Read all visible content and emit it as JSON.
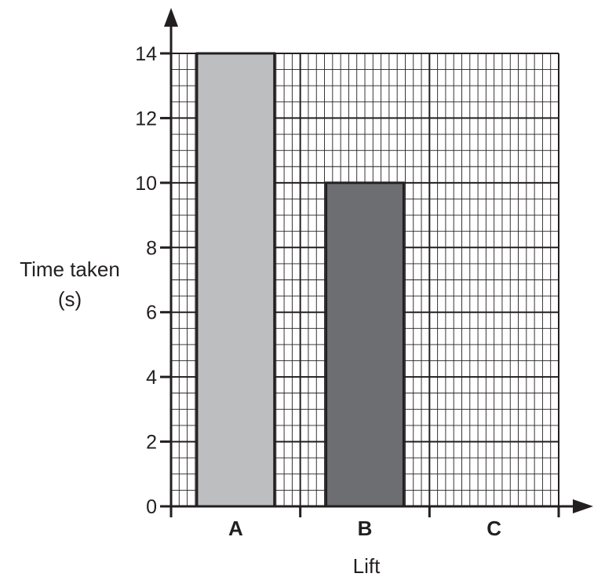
{
  "chart_data": {
    "type": "bar",
    "title": "",
    "xlabel": "Lift",
    "ylabel_line1": "Time taken",
    "ylabel_line2": "(s)",
    "categories": [
      "A",
      "B",
      "C"
    ],
    "values": [
      14,
      10,
      null
    ],
    "yticks": [
      0,
      2,
      4,
      6,
      8,
      10,
      12,
      14
    ],
    "ylim": [
      0,
      14
    ],
    "grid": true,
    "legend": "none",
    "colors": {
      "A": "#bcbec0",
      "B": "#6d6e71",
      "axis": "#231f20",
      "grid": "#231f20"
    }
  }
}
